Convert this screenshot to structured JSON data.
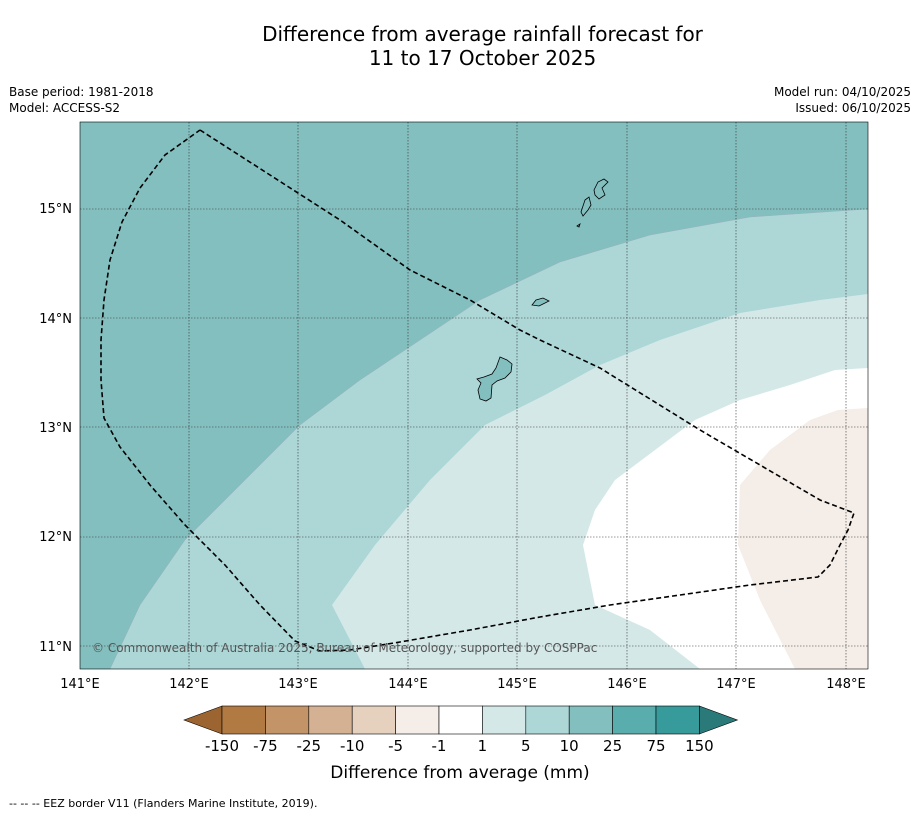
{
  "title": {
    "line1": "Difference from average rainfall forecast for",
    "line2": "11 to 17 October 2025"
  },
  "meta": {
    "base_period": "Base period: 1981-2018",
    "model": "Model: ACCESS-S2",
    "model_run": "Model run: 04/10/2025",
    "issued": "Issued: 06/10/2025"
  },
  "axes": {
    "lon_ticks": [
      "141°E",
      "142°E",
      "143°E",
      "144°E",
      "145°E",
      "146°E",
      "147°E",
      "148°E"
    ],
    "lat_ticks": [
      "15°N",
      "14°N",
      "13°N",
      "12°N",
      "11°N"
    ]
  },
  "credit": "© Commonwealth of Australia 2025, Bureau of Meteorology, supported by COSPPac",
  "colorbar": {
    "labels": [
      "-150",
      "-75",
      "-25",
      "-10",
      "-5",
      "-1",
      "1",
      "5",
      "10",
      "25",
      "75",
      "150"
    ],
    "colors": [
      "#9c6430",
      "#b07a42",
      "#c29468",
      "#d5b194",
      "#e6d1bf",
      "#f5ede7",
      "#ffffff",
      "#d5e8e8",
      "#add6d6",
      "#84bfbf",
      "#5aadad",
      "#379b9b",
      "#2a7a7a"
    ],
    "title": "Difference from average (mm)"
  },
  "footnote": "--  --  -- EEZ border V11 (Flanders Marine Institute, 2019).",
  "colors": {
    "cat25": "#84bfbf",
    "cat10": "#add6d6",
    "cat5": "#d5e8e8",
    "cat1": "#ffffff",
    "catm5": "#f5ede7"
  }
}
